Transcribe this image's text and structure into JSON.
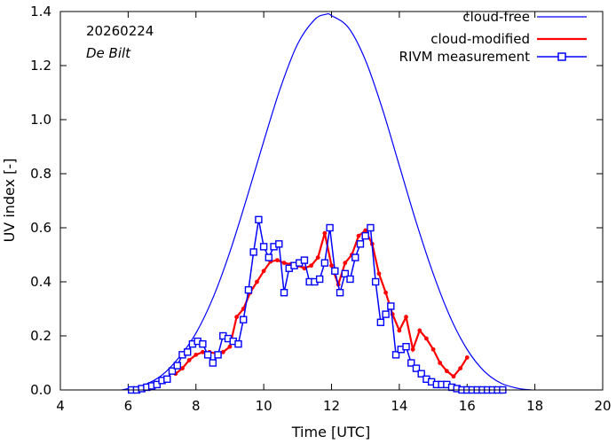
{
  "chart_data": {
    "type": "line",
    "title": "",
    "annotations": {
      "date": "20260224",
      "location": "De Bilt"
    },
    "xlabel": "Time  [UTC]",
    "ylabel": "UV index  [-]",
    "xlim": [
      4,
      20
    ],
    "ylim": [
      0.0,
      1.4
    ],
    "xticks": [
      "4",
      "6",
      "8",
      "10",
      "12",
      "14",
      "16",
      "18",
      "20"
    ],
    "yticks": [
      "0.0",
      "0.2",
      "0.4",
      "0.6",
      "0.8",
      "1.0",
      "1.2",
      "1.4"
    ],
    "legend_position": "top-right",
    "colors": {
      "clear_sky": "#0000ff",
      "cloud_modified": "#ff0000",
      "measured": "#0000ff"
    },
    "series": [
      {
        "name": "cloud-free",
        "style": "line",
        "x": [
          5.8,
          6.0,
          6.5,
          7.0,
          7.5,
          8.0,
          8.5,
          9.0,
          9.5,
          10.0,
          10.5,
          11.0,
          11.5,
          11.85,
          12.0,
          12.5,
          13.0,
          13.5,
          14.0,
          14.5,
          15.0,
          15.5,
          16.0,
          16.5,
          17.0,
          17.5,
          17.9
        ],
        "values": [
          0.0,
          0.005,
          0.02,
          0.055,
          0.12,
          0.21,
          0.34,
          0.51,
          0.71,
          0.92,
          1.12,
          1.28,
          1.37,
          1.39,
          1.385,
          1.34,
          1.22,
          1.04,
          0.83,
          0.62,
          0.43,
          0.27,
          0.15,
          0.07,
          0.025,
          0.006,
          0.0
        ]
      },
      {
        "name": "cloud-modified",
        "style": "line-dots",
        "x": [
          7.4,
          7.6,
          7.8,
          8.0,
          8.2,
          8.4,
          8.6,
          8.8,
          9.0,
          9.2,
          9.4,
          9.6,
          9.8,
          10.0,
          10.2,
          10.4,
          10.6,
          10.8,
          11.0,
          11.2,
          11.4,
          11.6,
          11.8,
          12.0,
          12.2,
          12.4,
          12.6,
          12.8,
          13.0,
          13.2,
          13.4,
          13.6,
          13.8,
          14.0,
          14.2,
          14.4,
          14.6,
          14.8,
          15.0,
          15.2,
          15.4,
          15.6,
          15.8,
          16.0
        ],
        "values": [
          0.06,
          0.08,
          0.11,
          0.13,
          0.14,
          0.14,
          0.135,
          0.14,
          0.16,
          0.27,
          0.3,
          0.36,
          0.4,
          0.44,
          0.475,
          0.48,
          0.47,
          0.465,
          0.46,
          0.45,
          0.46,
          0.49,
          0.58,
          0.46,
          0.39,
          0.47,
          0.5,
          0.57,
          0.59,
          0.54,
          0.43,
          0.36,
          0.28,
          0.22,
          0.27,
          0.15,
          0.22,
          0.19,
          0.15,
          0.1,
          0.07,
          0.05,
          0.08,
          0.12
        ]
      },
      {
        "name": "RIVM measurement",
        "style": "line-squares",
        "x": [
          6.1,
          6.25,
          6.4,
          6.55,
          6.7,
          6.85,
          7.0,
          7.15,
          7.3,
          7.45,
          7.6,
          7.75,
          7.9,
          8.05,
          8.2,
          8.35,
          8.5,
          8.65,
          8.8,
          8.95,
          9.1,
          9.25,
          9.4,
          9.55,
          9.7,
          9.85,
          10.0,
          10.15,
          10.3,
          10.45,
          10.6,
          10.75,
          10.9,
          11.05,
          11.2,
          11.35,
          11.5,
          11.65,
          11.8,
          11.95,
          12.1,
          12.25,
          12.4,
          12.55,
          12.7,
          12.85,
          13.0,
          13.15,
          13.3,
          13.45,
          13.6,
          13.75,
          13.9,
          14.05,
          14.2,
          14.35,
          14.5,
          14.65,
          14.8,
          14.95,
          15.1,
          15.25,
          15.4,
          15.55,
          15.7,
          15.85,
          16.0,
          16.15,
          16.3,
          16.45,
          16.6,
          16.75,
          16.9,
          17.05
        ],
        "values": [
          0.0,
          0.0,
          0.005,
          0.01,
          0.015,
          0.02,
          0.035,
          0.04,
          0.07,
          0.09,
          0.13,
          0.14,
          0.17,
          0.18,
          0.17,
          0.13,
          0.1,
          0.13,
          0.2,
          0.19,
          0.18,
          0.17,
          0.26,
          0.37,
          0.51,
          0.63,
          0.53,
          0.49,
          0.53,
          0.54,
          0.36,
          0.45,
          0.46,
          0.47,
          0.48,
          0.4,
          0.4,
          0.41,
          0.47,
          0.6,
          0.44,
          0.36,
          0.43,
          0.41,
          0.49,
          0.54,
          0.57,
          0.6,
          0.4,
          0.25,
          0.28,
          0.31,
          0.13,
          0.15,
          0.16,
          0.1,
          0.08,
          0.06,
          0.04,
          0.03,
          0.02,
          0.02,
          0.02,
          0.01,
          0.005,
          0.0,
          0.0,
          0.0,
          0.0,
          0.0,
          0.0,
          0.0,
          0.0,
          0.0
        ]
      }
    ]
  }
}
